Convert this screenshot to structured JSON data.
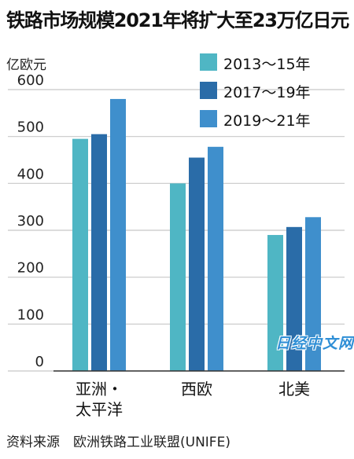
{
  "title": "铁路市场规模2021年将扩大至23万亿日元",
  "unit_label": "亿欧元",
  "source": "资料来源　欧洲铁路工业联盟(UNIFE)",
  "watermark": "日经中文网",
  "colors": {
    "series": [
      "#4fb6c4",
      "#2a6ca8",
      "#3f8fcc"
    ],
    "grid": "#c8c8c8",
    "axis": "#333333"
  },
  "chart_data": {
    "type": "bar",
    "categories": [
      "亚洲・太平洋",
      "西欧",
      "北美"
    ],
    "category_lines": [
      [
        "亚洲・",
        "太平洋"
      ],
      [
        "西欧"
      ],
      [
        "北美"
      ]
    ],
    "series": [
      {
        "name": "2013～15年",
        "values": [
          495,
          400,
          290
        ]
      },
      {
        "name": "2017～19年",
        "values": [
          505,
          455,
          307
        ]
      },
      {
        "name": "2019～21年",
        "values": [
          580,
          478,
          328
        ]
      }
    ],
    "ylim": [
      0,
      600
    ],
    "yticks": [
      0,
      100,
      200,
      300,
      400,
      500,
      600
    ],
    "ylabel": "亿欧元",
    "legend": "top-right",
    "grid": true
  }
}
